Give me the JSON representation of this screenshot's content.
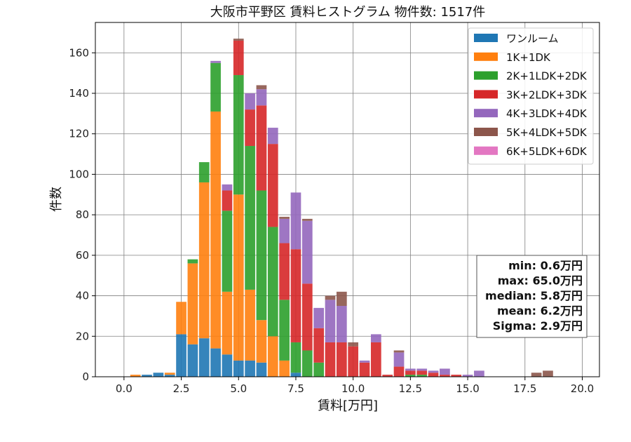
{
  "chart_data": {
    "type": "bar",
    "stacked": true,
    "title": "大阪市平野区 賃料ヒストグラム  物件数: 1517件",
    "xlabel": "賃料[万円]",
    "ylabel": "件数",
    "xlim": [
      -1.25,
      20.75
    ],
    "ylim": [
      0,
      175
    ],
    "xticks": [
      "0.0",
      "2.5",
      "5.0",
      "7.5",
      "10.0",
      "12.5",
      "15.0",
      "17.5",
      "20.0"
    ],
    "yticks": [
      "0",
      "20",
      "40",
      "60",
      "80",
      "100",
      "120",
      "140",
      "160"
    ],
    "grid": true,
    "legend_position": "top-right",
    "bin_width": 0.5,
    "x": [
      0.5,
      1.0,
      1.5,
      2.0,
      2.5,
      3.0,
      3.5,
      4.0,
      4.5,
      5.0,
      5.5,
      6.0,
      6.5,
      7.0,
      7.5,
      8.0,
      8.5,
      9.0,
      9.5,
      10.0,
      10.5,
      11.0,
      11.5,
      12.0,
      12.5,
      13.0,
      13.5,
      14.0,
      14.5,
      15.0,
      15.5,
      16.0,
      16.5,
      17.0,
      17.5,
      18.0,
      18.5
    ],
    "series": [
      {
        "name": "ワンルーム",
        "color": "#1f77b4",
        "values": [
          0,
          1,
          2,
          1,
          21,
          16,
          19,
          14,
          11,
          8,
          8,
          7,
          0,
          0,
          2,
          0,
          0,
          0,
          0,
          0,
          0,
          0,
          0,
          0,
          0,
          0,
          0,
          0,
          0,
          0,
          0,
          0,
          0,
          0,
          0,
          0,
          0
        ]
      },
      {
        "name": "1K+1DK",
        "color": "#ff7f0e",
        "values": [
          1,
          0,
          0,
          1,
          16,
          40,
          77,
          117,
          31,
          82,
          35,
          21,
          20,
          8,
          0,
          0,
          0,
          0,
          0,
          0,
          0,
          0,
          0,
          0,
          0,
          0,
          0,
          0,
          0,
          0,
          0,
          0,
          0,
          0,
          0,
          0,
          0
        ]
      },
      {
        "name": "2K+1LDK+2DK",
        "color": "#2ca02c",
        "values": [
          0,
          0,
          0,
          0,
          0,
          2,
          10,
          24,
          40,
          59,
          71,
          64,
          54,
          30,
          15,
          13,
          7,
          0,
          0,
          0,
          0,
          0,
          0,
          0,
          1,
          1,
          0,
          0,
          0,
          0,
          0,
          0,
          0,
          0,
          0,
          0,
          0
        ]
      },
      {
        "name": "3K+2LDK+3DK",
        "color": "#d62728",
        "values": [
          0,
          0,
          0,
          0,
          0,
          0,
          0,
          0,
          10,
          17,
          18,
          42,
          41,
          28,
          46,
          33,
          17,
          17,
          17,
          15,
          7,
          17,
          1,
          5,
          2,
          2,
          2,
          1,
          1,
          0,
          0,
          0,
          0,
          0,
          0,
          0,
          0
        ]
      },
      {
        "name": "4K+3LDK+4DK",
        "color": "#9467bd",
        "values": [
          0,
          0,
          0,
          0,
          0,
          0,
          0,
          1,
          3,
          0,
          8,
          8,
          8,
          12,
          28,
          31,
          10,
          21,
          18,
          0,
          1,
          4,
          0,
          7,
          1,
          1,
          1,
          3,
          0,
          1,
          3,
          0,
          0,
          0,
          0,
          0,
          0
        ]
      },
      {
        "name": "5K+4LDK+5DK",
        "color": "#8c564b",
        "values": [
          0,
          0,
          0,
          0,
          0,
          0,
          0,
          0,
          0,
          1,
          0,
          2,
          0,
          1,
          0,
          1,
          0,
          2,
          7,
          2,
          0,
          0,
          0,
          1,
          0,
          0,
          0,
          0,
          0,
          0,
          0,
          0,
          0,
          0,
          0,
          2,
          3
        ]
      },
      {
        "name": "6K+5LDK+6DK",
        "color": "#e377c2",
        "values": [
          0,
          0,
          0,
          0,
          0,
          0,
          0,
          0,
          0,
          0,
          0,
          0,
          0,
          0,
          0,
          0,
          0,
          0,
          0,
          0,
          0,
          0,
          0,
          0,
          0,
          0,
          0,
          0,
          0,
          0,
          0,
          0,
          0,
          0,
          0,
          0,
          0
        ]
      }
    ],
    "stats_box": [
      "min: 0.6万円",
      "max: 65.0万円",
      "median: 5.8万円",
      "mean: 6.2万円",
      "Sigma: 2.9万円"
    ]
  }
}
